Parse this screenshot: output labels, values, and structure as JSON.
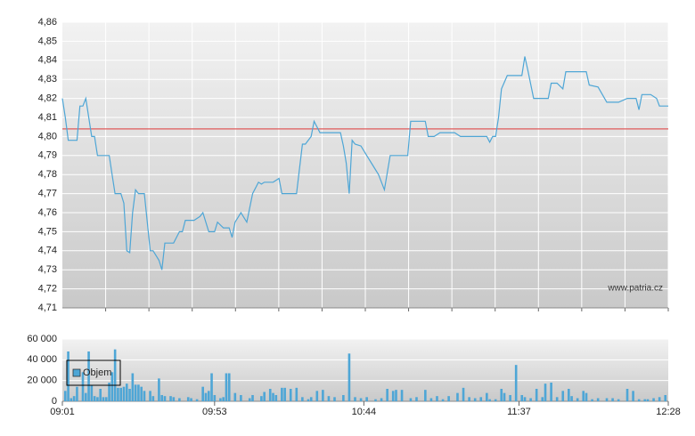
{
  "chart_data": [
    {
      "type": "line",
      "x": [
        "09:01",
        "09:02",
        "09:03",
        "09:06",
        "09:07",
        "09:08",
        "09:09",
        "09:10",
        "09:11",
        "09:12",
        "09:13",
        "09:17",
        "09:18",
        "09:19",
        "09:21",
        "09:22",
        "09:23",
        "09:24",
        "09:25",
        "09:26",
        "09:27",
        "09:29",
        "09:31",
        "09:32",
        "09:34",
        "09:35",
        "09:36",
        "09:39",
        "09:41",
        "09:42",
        "09:43",
        "09:46",
        "09:48",
        "09:49",
        "09:51",
        "09:53",
        "09:54",
        "09:56",
        "09:58",
        "09:59",
        "10:00",
        "10:02",
        "10:04",
        "10:06",
        "10:08",
        "10:09",
        "10:10",
        "10:13",
        "10:15",
        "10:16",
        "10:21",
        "10:23",
        "10:24",
        "10:26",
        "10:27",
        "10:29",
        "10:36",
        "10:37",
        "10:38",
        "10:39",
        "10:40",
        "10:41",
        "10:43",
        "10:45",
        "10:47",
        "10:49",
        "10:51",
        "10:53",
        "10:59",
        "11:00",
        "11:05",
        "11:06",
        "11:08",
        "11:10",
        "11:15",
        "11:17",
        "11:26",
        "11:27",
        "11:28",
        "11:29",
        "11:30",
        "11:31",
        "11:33",
        "11:38",
        "11:39",
        "11:40",
        "11:42",
        "11:47",
        "11:48",
        "11:50",
        "11:52",
        "11:53",
        "12:00",
        "12:01",
        "12:04",
        "12:07",
        "12:11",
        "12:14",
        "12:17",
        "12:18",
        "12:19",
        "12:22",
        "12:24",
        "12:25",
        "12:28"
      ],
      "values": [
        4.82,
        4.81,
        4.798,
        4.798,
        4.816,
        4.816,
        4.82,
        4.81,
        4.8,
        4.8,
        4.79,
        4.79,
        4.78,
        4.77,
        4.77,
        4.765,
        4.74,
        4.739,
        4.76,
        4.772,
        4.77,
        4.77,
        4.74,
        4.74,
        4.735,
        4.73,
        4.744,
        4.744,
        4.75,
        4.75,
        4.756,
        4.756,
        4.758,
        4.76,
        4.75,
        4.75,
        4.755,
        4.752,
        4.752,
        4.747,
        4.755,
        4.76,
        4.755,
        4.77,
        4.776,
        4.775,
        4.776,
        4.776,
        4.778,
        4.77,
        4.77,
        4.796,
        4.796,
        4.8,
        4.808,
        4.802,
        4.802,
        4.795,
        4.786,
        4.77,
        4.798,
        4.796,
        4.795,
        4.79,
        4.785,
        4.78,
        4.772,
        4.79,
        4.79,
        4.808,
        4.808,
        4.8,
        4.8,
        4.802,
        4.802,
        4.8,
        4.8,
        4.797,
        4.8,
        4.8,
        4.81,
        4.825,
        4.832,
        4.832,
        4.842,
        4.835,
        4.82,
        4.82,
        4.828,
        4.828,
        4.825,
        4.834,
        4.834,
        4.827,
        4.826,
        4.818,
        4.818,
        4.82,
        4.82,
        4.814,
        4.822,
        4.822,
        4.82,
        4.816,
        4.816
      ],
      "color": "#4ea6d6",
      "reference_line": {
        "value": 4.804,
        "color": "#e05a5a"
      },
      "xlim": [
        "09:01",
        "12:28"
      ],
      "ylim": [
        4.71,
        4.86
      ],
      "yticks": [
        {
          "value": 4.71,
          "label": "4,71"
        },
        {
          "value": 4.72,
          "label": "4,72"
        },
        {
          "value": 4.73,
          "label": "4,73"
        },
        {
          "value": 4.74,
          "label": "4,74"
        },
        {
          "value": 4.75,
          "label": "4,75"
        },
        {
          "value": 4.76,
          "label": "4,76"
        },
        {
          "value": 4.77,
          "label": "4,77"
        },
        {
          "value": 4.78,
          "label": "4,78"
        },
        {
          "value": 4.79,
          "label": "4,79"
        },
        {
          "value": 4.8,
          "label": "4,80"
        },
        {
          "value": 4.81,
          "label": "4,81"
        },
        {
          "value": 4.82,
          "label": "4,82"
        },
        {
          "value": 4.83,
          "label": "4,83"
        },
        {
          "value": 4.84,
          "label": "4,84"
        },
        {
          "value": 4.85,
          "label": "4,85"
        },
        {
          "value": 4.86,
          "label": "4,86"
        }
      ],
      "grid": true,
      "watermark": "www.patria.cz"
    },
    {
      "type": "bar",
      "x": [
        "09:02",
        "09:03",
        "09:04",
        "09:05",
        "09:06",
        "09:08",
        "09:09",
        "09:10",
        "09:11",
        "09:12",
        "09:13",
        "09:14",
        "09:15",
        "09:16",
        "09:17",
        "09:18",
        "09:19",
        "09:20",
        "09:21",
        "09:22",
        "09:23",
        "09:24",
        "09:25",
        "09:26",
        "09:27",
        "09:28",
        "09:29",
        "09:31",
        "09:32",
        "09:34",
        "09:35",
        "09:36",
        "09:38",
        "09:39",
        "09:41",
        "09:44",
        "09:45",
        "09:47",
        "09:49",
        "09:50",
        "09:51",
        "09:52",
        "09:53",
        "09:55",
        "09:56",
        "09:57",
        "09:58",
        "10:00",
        "10:02",
        "10:05",
        "10:06",
        "10:09",
        "10:10",
        "10:12",
        "10:13",
        "10:14",
        "10:16",
        "10:17",
        "10:19",
        "10:21",
        "10:23",
        "10:25",
        "10:26",
        "10:28",
        "10:30",
        "10:32",
        "10:34",
        "10:37",
        "10:39",
        "10:41",
        "10:43",
        "10:45",
        "10:48",
        "10:50",
        "10:52",
        "10:54",
        "10:55",
        "10:57",
        "11:00",
        "11:02",
        "11:05",
        "11:07",
        "11:09",
        "11:11",
        "11:13",
        "11:16",
        "11:18",
        "11:20",
        "11:22",
        "11:24",
        "11:26",
        "11:27",
        "11:29",
        "11:31",
        "11:32",
        "11:34",
        "11:36",
        "11:38",
        "11:39",
        "11:41",
        "11:43",
        "11:45",
        "11:46",
        "11:48",
        "11:50",
        "11:52",
        "11:54",
        "11:55",
        "11:57",
        "11:59",
        "12:00",
        "12:02",
        "12:04",
        "12:07",
        "12:09",
        "12:11",
        "12:14",
        "12:16",
        "12:18",
        "12:20",
        "12:21",
        "12:23",
        "12:25",
        "12:27"
      ],
      "series": [
        {
          "name": "Objem",
          "color": "#4ea6d6",
          "values": [
            10000,
            48000,
            3000,
            5000,
            14000,
            28000,
            8000,
            48000,
            15000,
            5000,
            4000,
            12000,
            4000,
            4000,
            18000,
            28000,
            50000,
            13000,
            13000,
            14000,
            17000,
            12000,
            27000,
            16000,
            16000,
            14000,
            10000,
            10000,
            5000,
            22000,
            6000,
            5000,
            5000,
            4000,
            3000,
            4000,
            3000,
            2000,
            14000,
            8000,
            10000,
            27000,
            6000,
            3000,
            4000,
            27000,
            27000,
            8000,
            6000,
            3000,
            6000,
            5000,
            9000,
            12000,
            8000,
            6000,
            13000,
            13000,
            12000,
            13000,
            4000,
            2000,
            4000,
            10000,
            11000,
            5000,
            4000,
            6000,
            46000,
            4000,
            3000,
            4000,
            2000,
            3000,
            12000,
            10000,
            11000,
            11000,
            3000,
            4000,
            11000,
            3000,
            5000,
            2000,
            5000,
            8000,
            13000,
            4000,
            3000,
            4000,
            8000,
            2000,
            2000,
            12000,
            8000,
            6000,
            35000,
            6000,
            4000,
            3000,
            12000,
            4000,
            17000,
            18000,
            4000,
            10000,
            12000,
            5000,
            3000,
            10000,
            8000,
            2000,
            3000,
            3000,
            3000,
            2000,
            12000,
            10000,
            2000,
            2000,
            2000,
            3000,
            4000,
            6000
          ]
        }
      ],
      "xlim": [
        "09:01",
        "12:28"
      ],
      "xticks": [
        "09:01",
        "09:53",
        "10:44",
        "11:37",
        "12:28"
      ],
      "ylim": [
        0,
        60000
      ],
      "yticks": [
        0,
        {
          "value": 20000,
          "label": "20 000"
        },
        {
          "value": 40000,
          "label": "40 000"
        },
        {
          "value": 60000,
          "label": "60 000"
        }
      ],
      "grid": true,
      "legend": "upper left"
    }
  ]
}
